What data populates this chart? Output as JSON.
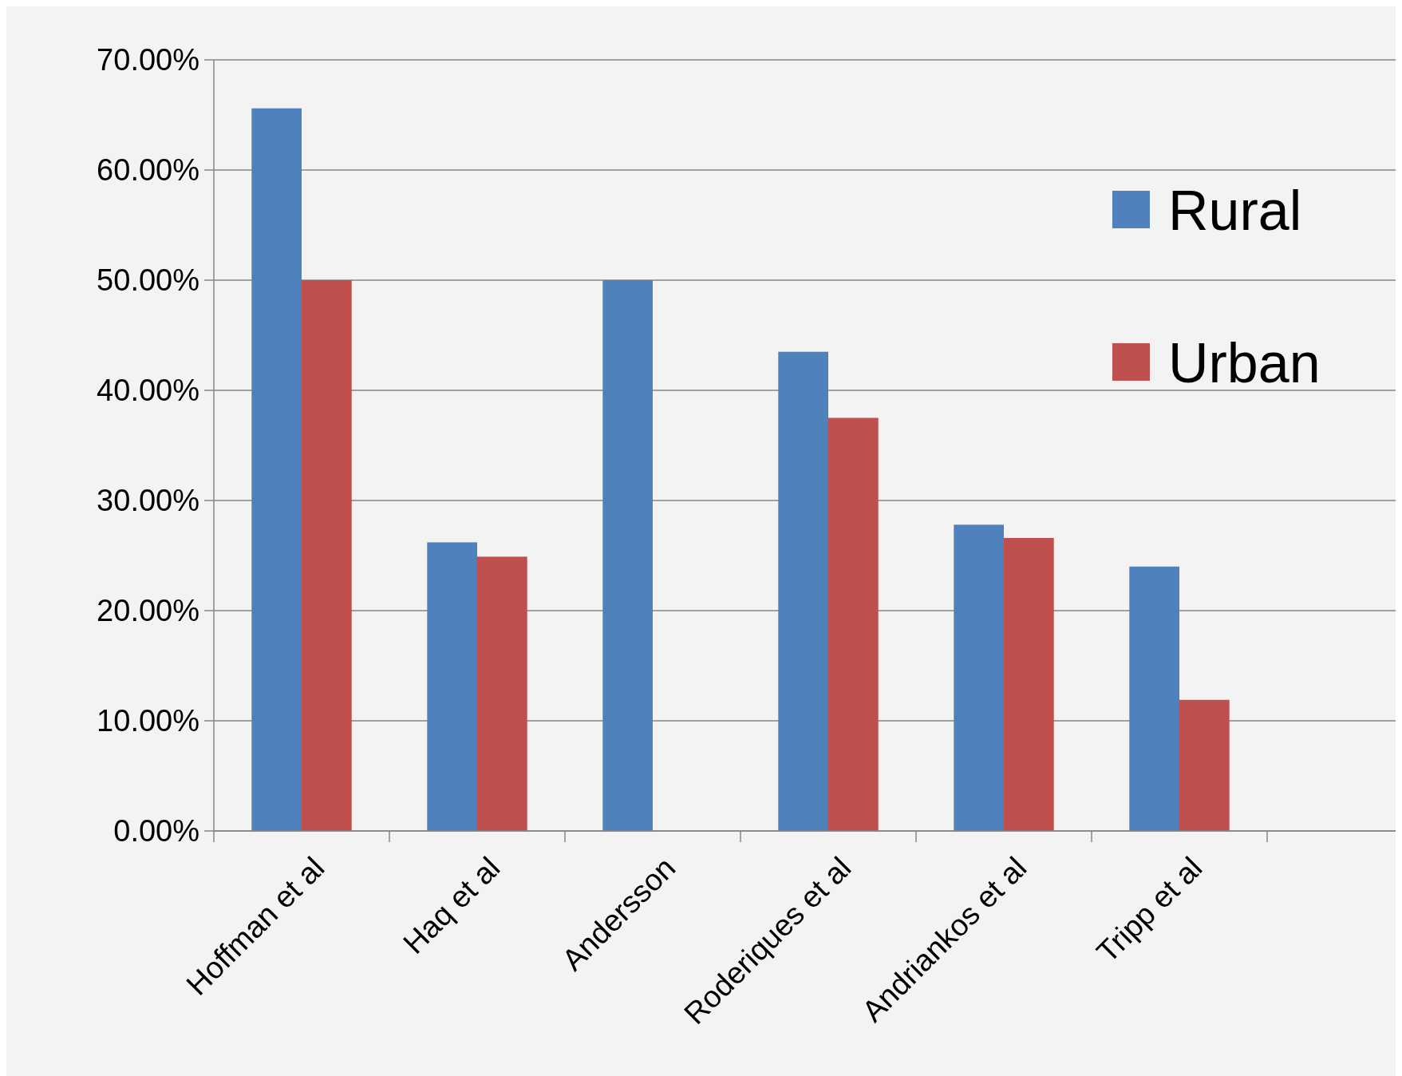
{
  "chart_data": {
    "type": "bar",
    "categories": [
      "Hoffman et al",
      "Haq et al",
      "Andersson",
      "Roderiques et al",
      "Andriankos et al",
      "Tripp et al",
      null
    ],
    "series": [
      {
        "name": "Rural",
        "color": "#4f81bd",
        "values": [
          65.6,
          26.2,
          50.0,
          43.5,
          27.8,
          24.0,
          null
        ]
      },
      {
        "name": "Urban",
        "color": "#c0504d",
        "values": [
          50.0,
          24.9,
          null,
          37.5,
          26.6,
          11.9,
          null
        ]
      }
    ],
    "ylim": [
      0,
      70
    ],
    "yticks": [
      {
        "value": 0,
        "label": "0.00%"
      },
      {
        "value": 10,
        "label": "10.00%"
      },
      {
        "value": 20,
        "label": "20.00%"
      },
      {
        "value": 30,
        "label": "30.00%"
      },
      {
        "value": 40,
        "label": "40.00%"
      },
      {
        "value": 50,
        "label": "50.00%"
      },
      {
        "value": 60,
        "label": "60.00%"
      },
      {
        "value": 70,
        "label": "70.00%"
      }
    ],
    "grid": "y",
    "legend": "top right"
  }
}
